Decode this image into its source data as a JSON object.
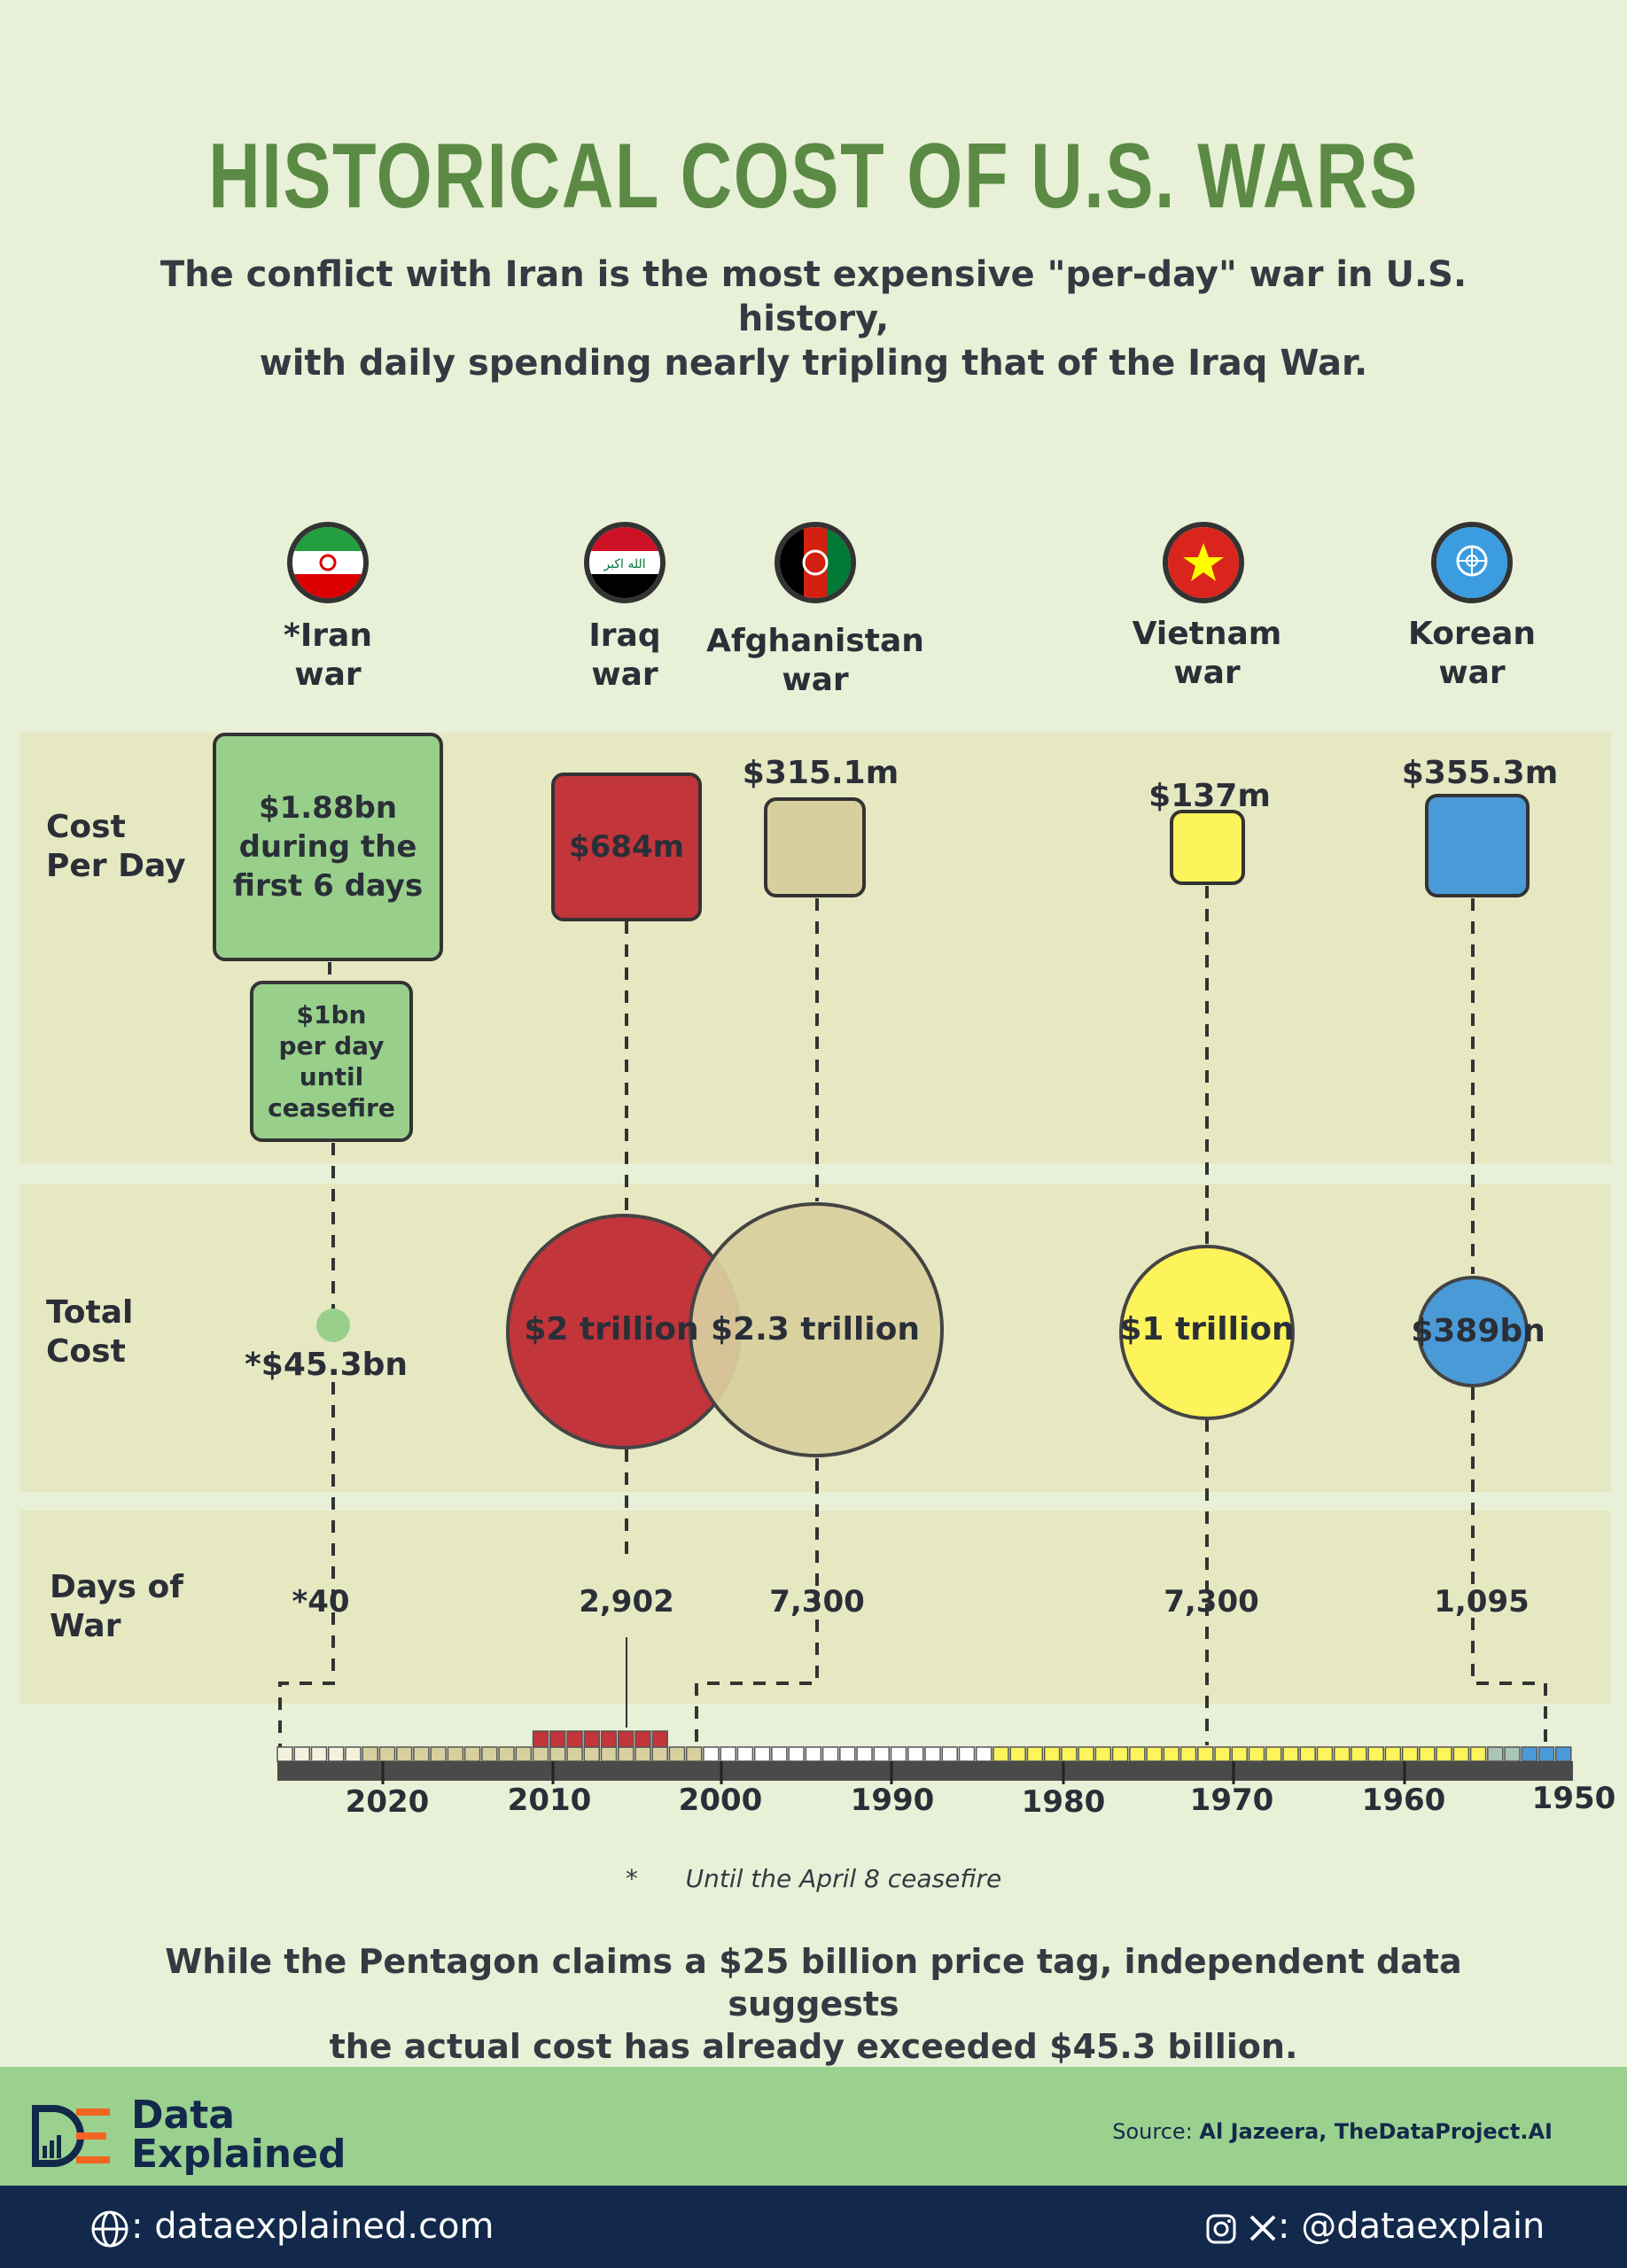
{
  "title": "HISTORICAL COST OF U.S. WARS",
  "subtitle_line1": "The conflict with Iran is the most expensive \"per-day\" war in U.S. history,",
  "subtitle_line2": "with daily spending nearly tripling that of the Iraq War.",
  "row_labels": {
    "cost_per_day_1": "Cost",
    "cost_per_day_2": "Per Day",
    "total_cost_1": "Total",
    "total_cost_2": "Cost",
    "days_1": "Days of",
    "days_2": "War"
  },
  "wars": {
    "iran": {
      "label1": "*Iran",
      "label2": "war",
      "per_day_1": "$1.88bn",
      "per_day_2": "during the",
      "per_day_3": "first 6 days",
      "per_day_b1": "$1bn",
      "per_day_b2": "per day",
      "per_day_b3": "until",
      "per_day_b4": "ceasefire",
      "total": "*$45.3bn",
      "days": "*40",
      "color": "#98d08b"
    },
    "iraq": {
      "label1": "Iraq",
      "label2": "war",
      "per_day": "$684m",
      "total": "$2 trillion",
      "days": "2,902",
      "color": "#c1353b"
    },
    "afghanistan": {
      "label1": "Afghanistan",
      "label2": "war",
      "per_day": "$315.1m",
      "total": "$2.3 trillion",
      "days": "7,300",
      "color": "#d8cf9e"
    },
    "vietnam": {
      "label1": "Vietnam",
      "label2": "war",
      "per_day": "$137m",
      "total": "$1 trillion",
      "days": "7,300",
      "color": "#fdf35a"
    },
    "korea": {
      "label1": "Korean",
      "label2": "war",
      "per_day": "$355.3m",
      "total": "$389bn",
      "days": "1,095",
      "color": "#4a9ad8"
    }
  },
  "chart_data": {
    "type": "bubble",
    "categories": [
      "Iran war",
      "Iraq war",
      "Afghanistan war",
      "Vietnam war",
      "Korean war"
    ],
    "series": [
      {
        "name": "Cost Per Day",
        "values": [
          "$1.88bn during the first 6 days; $1bn per day until ceasefire",
          "$684m",
          "$315.1m",
          "$137m",
          "$355.3m"
        ]
      },
      {
        "name": "Total Cost",
        "values": [
          "*$45.3bn",
          "$2 trillion",
          "$2.3 trillion",
          "$1 trillion",
          "$389bn"
        ]
      },
      {
        "name": "Days of War",
        "values": [
          40,
          2902,
          7300,
          7300,
          1095
        ]
      }
    ],
    "total_cost_billions": [
      45.3,
      2000,
      2300,
      1000,
      389
    ],
    "timeline_ticks": [
      "2020",
      "2010",
      "2000",
      "1990",
      "1980",
      "1970",
      "1960",
      "1950"
    ],
    "timeline_axis": "reversed years"
  },
  "footnote_mark": "*",
  "footnote": "Until the April 8 ceasefire",
  "bottom_line1": "While the Pentagon claims a $25 billion price tag, independent data suggests",
  "bottom_line2": "the actual cost has already exceeded $45.3 billion.",
  "brand_line1": "Data",
  "brand_line2": "Explained",
  "source_label": "Source: ",
  "source_value": "Al Jazeera, TheDataProject.AI",
  "website": ": dataexplained.com",
  "social": ": @dataexplain"
}
